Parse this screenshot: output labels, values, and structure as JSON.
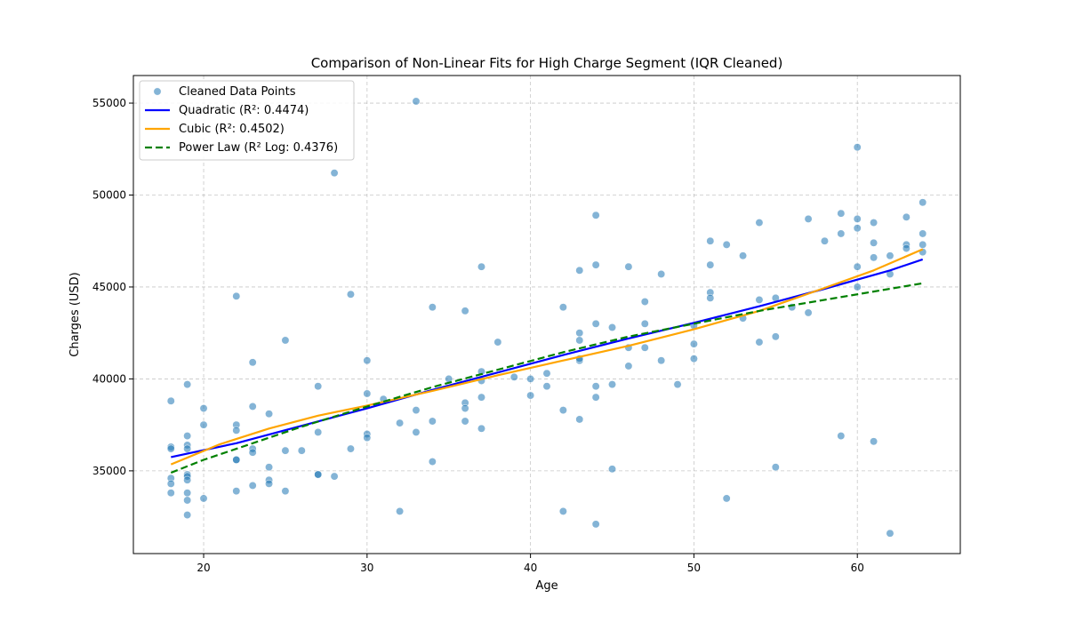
{
  "chart_data": {
    "type": "scatter",
    "title": "Comparison of Non-Linear Fits for High Charge Segment (IQR Cleaned)",
    "xlabel": "Age",
    "ylabel": "Charges (USD)",
    "xlim": [
      15.7,
      66.3
    ],
    "ylim": [
      30500,
      56500
    ],
    "xticks": [
      20,
      30,
      40,
      50,
      60
    ],
    "xtick_labels": [
      "20",
      "30",
      "40",
      "50",
      "60"
    ],
    "yticks": [
      35000,
      40000,
      45000,
      50000,
      55000
    ],
    "ytick_labels": [
      "35000",
      "40000",
      "45000",
      "50000",
      "55000"
    ],
    "grid": true,
    "legend_position": "upper-left",
    "colors": {
      "points": "#1f77b4",
      "quadratic": "#0000ff",
      "cubic": "#ffa500",
      "power": "#008000"
    },
    "scatter": {
      "name": "Cleaned Data Points",
      "points": [
        [
          18,
          38800
        ],
        [
          18,
          36300
        ],
        [
          18,
          36200
        ],
        [
          18,
          34600
        ],
        [
          18,
          34300
        ],
        [
          18,
          33800
        ],
        [
          19,
          39700
        ],
        [
          19,
          36900
        ],
        [
          19,
          36400
        ],
        [
          19,
          36200
        ],
        [
          19,
          34800
        ],
        [
          19,
          34700
        ],
        [
          19,
          34500
        ],
        [
          19,
          33800
        ],
        [
          19,
          33400
        ],
        [
          19,
          32600
        ],
        [
          20,
          38400
        ],
        [
          20,
          37500
        ],
        [
          20,
          33500
        ],
        [
          22,
          44500
        ],
        [
          22,
          37500
        ],
        [
          22,
          37200
        ],
        [
          22,
          35600
        ],
        [
          22,
          35600
        ],
        [
          22,
          33900
        ],
        [
          23,
          40900
        ],
        [
          23,
          38500
        ],
        [
          23,
          36200
        ],
        [
          23,
          36000
        ],
        [
          23,
          34200
        ],
        [
          24,
          38100
        ],
        [
          24,
          35200
        ],
        [
          24,
          34500
        ],
        [
          24,
          34300
        ],
        [
          25,
          42100
        ],
        [
          25,
          36100
        ],
        [
          25,
          33900
        ],
        [
          26,
          36100
        ],
        [
          27,
          39600
        ],
        [
          27,
          37100
        ],
        [
          27,
          34800
        ],
        [
          27,
          34800
        ],
        [
          28,
          51200
        ],
        [
          28,
          34700
        ],
        [
          29,
          44600
        ],
        [
          29,
          36200
        ],
        [
          30,
          41000
        ],
        [
          30,
          39200
        ],
        [
          30,
          37000
        ],
        [
          30,
          36800
        ],
        [
          31,
          38900
        ],
        [
          32,
          37600
        ],
        [
          32,
          32800
        ],
        [
          33,
          55100
        ],
        [
          33,
          38300
        ],
        [
          33,
          37100
        ],
        [
          34,
          43900
        ],
        [
          34,
          37700
        ],
        [
          34,
          35500
        ],
        [
          35,
          40000
        ],
        [
          36,
          43700
        ],
        [
          36,
          38700
        ],
        [
          36,
          38400
        ],
        [
          36,
          37700
        ],
        [
          37,
          46100
        ],
        [
          37,
          40400
        ],
        [
          37,
          39900
        ],
        [
          37,
          39000
        ],
        [
          37,
          37300
        ],
        [
          38,
          42000
        ],
        [
          39,
          40100
        ],
        [
          40,
          40000
        ],
        [
          40,
          39100
        ],
        [
          41,
          40300
        ],
        [
          41,
          39600
        ],
        [
          42,
          43900
        ],
        [
          42,
          38300
        ],
        [
          42,
          32800
        ],
        [
          43,
          45900
        ],
        [
          43,
          42500
        ],
        [
          43,
          42100
        ],
        [
          43,
          41000
        ],
        [
          43,
          41100
        ],
        [
          43,
          37800
        ],
        [
          44,
          48900
        ],
        [
          44,
          46200
        ],
        [
          44,
          43000
        ],
        [
          44,
          39600
        ],
        [
          44,
          39000
        ],
        [
          44,
          32100
        ],
        [
          45,
          42800
        ],
        [
          45,
          39700
        ],
        [
          45,
          35100
        ],
        [
          46,
          46100
        ],
        [
          46,
          41700
        ],
        [
          46,
          40700
        ],
        [
          47,
          44200
        ],
        [
          47,
          43000
        ],
        [
          47,
          41700
        ],
        [
          48,
          45700
        ],
        [
          48,
          41000
        ],
        [
          49,
          39700
        ],
        [
          50,
          42900
        ],
        [
          50,
          41900
        ],
        [
          50,
          41100
        ],
        [
          51,
          47500
        ],
        [
          51,
          46200
        ],
        [
          51,
          44700
        ],
        [
          51,
          44400
        ],
        [
          52,
          47300
        ],
        [
          52,
          33500
        ],
        [
          53,
          46700
        ],
        [
          53,
          43300
        ],
        [
          54,
          48500
        ],
        [
          54,
          44300
        ],
        [
          54,
          42000
        ],
        [
          55,
          44400
        ],
        [
          55,
          42300
        ],
        [
          55,
          35200
        ],
        [
          56,
          43900
        ],
        [
          57,
          48700
        ],
        [
          57,
          43600
        ],
        [
          58,
          47500
        ],
        [
          59,
          49000
        ],
        [
          59,
          47900
        ],
        [
          59,
          36900
        ],
        [
          60,
          52600
        ],
        [
          60,
          48700
        ],
        [
          60,
          48200
        ],
        [
          60,
          46100
        ],
        [
          60,
          45000
        ],
        [
          61,
          48500
        ],
        [
          61,
          47400
        ],
        [
          61,
          46600
        ],
        [
          61,
          36600
        ],
        [
          62,
          46700
        ],
        [
          62,
          45700
        ],
        [
          62,
          31600
        ],
        [
          63,
          48800
        ],
        [
          63,
          47300
        ],
        [
          63,
          47100
        ],
        [
          64,
          49600
        ],
        [
          64,
          47900
        ],
        [
          64,
          47300
        ],
        [
          64,
          46900
        ]
      ]
    },
    "series": [
      {
        "name": "Quadratic (R²: 0.4474)",
        "style": "solid",
        "x": [
          18,
          22,
          26,
          30,
          34,
          38,
          42,
          46,
          50,
          54,
          58,
          62,
          64
        ],
        "y": [
          35750,
          36500,
          37450,
          38400,
          39400,
          40350,
          41300,
          42200,
          43050,
          43950,
          44900,
          45900,
          46500
        ]
      },
      {
        "name": "Cubic (R²: 0.4502)",
        "style": "solid",
        "x": [
          18,
          21,
          24,
          27,
          30,
          34,
          38,
          42,
          46,
          50,
          54,
          58,
          61,
          64
        ],
        "y": [
          35350,
          36450,
          37300,
          38000,
          38550,
          39350,
          40200,
          41000,
          41800,
          42700,
          43700,
          44950,
          45900,
          47050
        ]
      },
      {
        "name": "Power Law (R² Log: 0.4376)",
        "style": "dashed",
        "x": [
          18,
          20,
          22,
          24,
          26,
          28,
          30,
          34,
          38,
          42,
          46,
          50,
          54,
          58,
          62,
          64
        ],
        "y": [
          34900,
          35600,
          36200,
          36800,
          37400,
          37950,
          38500,
          39550,
          40500,
          41450,
          42300,
          43000,
          43700,
          44300,
          44900,
          45200
        ]
      }
    ]
  }
}
